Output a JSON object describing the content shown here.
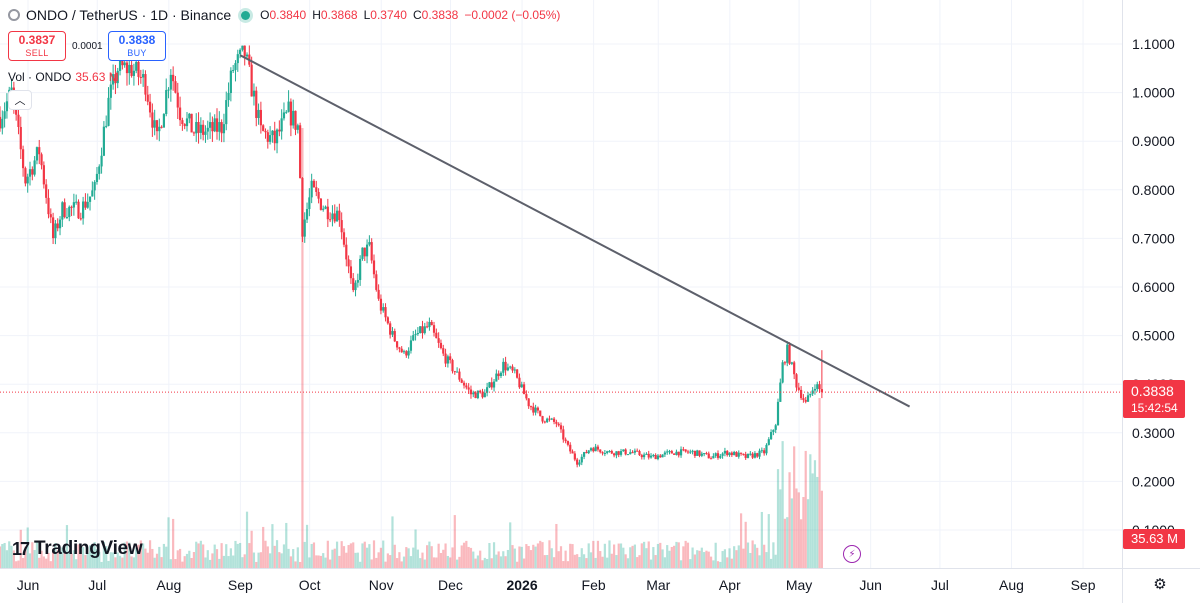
{
  "header": {
    "symbol_title": "ONDO / TetherUS · 1D · Binance",
    "ohlc": [
      {
        "k": "O",
        "v": "0.3840"
      },
      {
        "k": "H",
        "v": "0.3868"
      },
      {
        "k": "L",
        "v": "0.3740"
      },
      {
        "k": "C",
        "v": "0.3838"
      },
      {
        "k": "",
        "v": "−0.0002 (−0.05%)"
      }
    ]
  },
  "trade": {
    "sell_price": "0.3837",
    "sell_label": "SELL",
    "spread": "0.0001",
    "buy_price": "0.3838",
    "buy_label": "BUY"
  },
  "volume": {
    "label": "Vol · ONDO",
    "value": "35.63 M",
    "tag": "35.63 M"
  },
  "last_price": {
    "price": "0.3838",
    "countdown": "15:42:54"
  },
  "brand": {
    "name": "TradingView"
  },
  "colors": {
    "up": "#22ab94",
    "down": "#f23645",
    "trendline": "#5d606b",
    "grid": "#f0f3fa"
  },
  "icons": {
    "flash": "lightning-icon",
    "settings": "gear-icon",
    "collapse": "chevron-up-icon"
  },
  "chart_data": {
    "type": "candlestick",
    "price_axis": {
      "ticks": [
        "1.1000",
        "1.0000",
        "0.9000",
        "0.8000",
        "0.7000",
        "0.6000",
        "0.5000",
        "0.4000",
        "0.3000",
        "0.2000",
        "0.1000"
      ],
      "range": [
        0.0,
        1.17
      ]
    },
    "time_axis": {
      "labels": [
        "Jun",
        "Jul",
        "Aug",
        "Sep",
        "Oct",
        "Nov",
        "Dec",
        "2026",
        "Feb",
        "Mar",
        "Apr",
        "May",
        "Jun",
        "Jul",
        "Aug",
        "Sep"
      ],
      "bold": [
        "2026"
      ],
      "start": "2025-06-01",
      "end": "2026-09-30"
    },
    "price_path": [
      [
        "2025-06-01",
        0.95
      ],
      [
        "2025-06-06",
        1.0
      ],
      [
        "2025-06-12",
        0.82
      ],
      [
        "2025-06-18",
        0.88
      ],
      [
        "2025-06-24",
        0.7
      ],
      [
        "2025-06-28",
        0.76
      ],
      [
        "2025-07-06",
        0.76
      ],
      [
        "2025-07-12",
        0.8
      ],
      [
        "2025-07-18",
        0.98
      ],
      [
        "2025-07-22",
        1.05
      ],
      [
        "2025-07-28",
        1.05
      ],
      [
        "2025-08-03",
        1.02
      ],
      [
        "2025-08-08",
        0.9
      ],
      [
        "2025-08-14",
        1.05
      ],
      [
        "2025-08-18",
        0.96
      ],
      [
        "2025-08-24",
        0.92
      ],
      [
        "2025-08-30",
        0.92
      ],
      [
        "2025-09-05",
        0.93
      ],
      [
        "2025-09-10",
        1.05
      ],
      [
        "2025-09-15",
        1.08
      ],
      [
        "2025-09-22",
        0.92
      ],
      [
        "2025-09-28",
        0.9
      ],
      [
        "2025-10-04",
        0.96
      ],
      [
        "2025-10-08",
        0.93
      ],
      [
        "2025-10-10",
        0.72
      ],
      [
        "2025-10-14",
        0.8
      ],
      [
        "2025-10-20",
        0.76
      ],
      [
        "2025-10-26",
        0.75
      ],
      [
        "2025-11-01",
        0.58
      ],
      [
        "2025-11-05",
        0.67
      ],
      [
        "2025-11-08",
        0.68
      ],
      [
        "2025-11-12",
        0.57
      ],
      [
        "2025-11-18",
        0.5
      ],
      [
        "2025-11-23",
        0.46
      ],
      [
        "2025-11-28",
        0.5
      ],
      [
        "2025-12-04",
        0.52
      ],
      [
        "2025-12-10",
        0.46
      ],
      [
        "2025-12-16",
        0.42
      ],
      [
        "2025-12-22",
        0.38
      ],
      [
        "2025-12-28",
        0.38
      ],
      [
        "2026-01-05",
        0.44
      ],
      [
        "2026-01-10",
        0.42
      ],
      [
        "2026-01-16",
        0.36
      ],
      [
        "2026-01-22",
        0.33
      ],
      [
        "2026-01-28",
        0.32
      ],
      [
        "2026-02-02",
        0.27
      ],
      [
        "2026-02-06",
        0.24
      ],
      [
        "2026-02-12",
        0.27
      ],
      [
        "2026-02-20",
        0.26
      ],
      [
        "2026-03-01",
        0.26
      ],
      [
        "2026-03-10",
        0.25
      ],
      [
        "2026-03-20",
        0.26
      ],
      [
        "2026-03-28",
        0.26
      ],
      [
        "2026-04-05",
        0.25
      ],
      [
        "2026-04-12",
        0.26
      ],
      [
        "2026-04-20",
        0.25
      ],
      [
        "2026-04-28",
        0.26
      ],
      [
        "2026-05-03",
        0.32
      ],
      [
        "2026-05-06",
        0.44
      ],
      [
        "2026-05-08",
        0.47
      ],
      [
        "2026-05-12",
        0.4
      ],
      [
        "2026-05-16",
        0.36
      ],
      [
        "2026-05-20",
        0.4
      ],
      [
        "2026-05-23",
        0.3838
      ]
    ],
    "trendline": [
      [
        "2025-09-13",
        1.077
      ],
      [
        "2026-06-30",
        0.354
      ]
    ],
    "last_price": 0.3838,
    "volume_unit": "M",
    "volume_last": 35.63
  }
}
